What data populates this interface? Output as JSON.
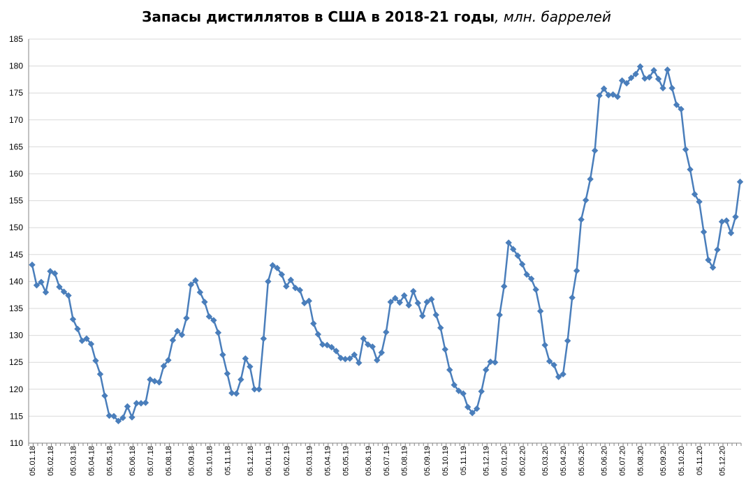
{
  "chart_data": {
    "type": "line",
    "title": "Запасы дистиллятов в США в 2018-21 годы",
    "title_unit": ", млн. баррелей",
    "xlabel": "",
    "ylabel": "",
    "ylim": [
      110,
      185
    ],
    "yticks": [
      110,
      115,
      120,
      125,
      130,
      135,
      140,
      145,
      150,
      155,
      160,
      165,
      170,
      175,
      180,
      185
    ],
    "xtick_labels": [
      "05.01.18",
      "05.02.18",
      "05.03.18",
      "05.04.18",
      "05.05.18",
      "05.06.18",
      "05.07.18",
      "05.08.18",
      "05.09.18",
      "05.10.18",
      "05.11.18",
      "05.12.18",
      "05.01.19",
      "05.02.19",
      "05.03.19",
      "05.04.19",
      "05.05.19",
      "05.06.19",
      "05.07.19",
      "05.08.19",
      "05.09.19",
      "05.10.19",
      "05.11.19",
      "05.12.19",
      "05.01.20",
      "05.02.20",
      "05.03.20",
      "05.04.20",
      "05.05.20",
      "05.06.20",
      "05.07.20",
      "05.08.20",
      "05.09.20",
      "05.10.20",
      "05.11.20",
      "05.12.20"
    ],
    "grid": true,
    "legend": "none",
    "line_color": "#4a7ebb",
    "grid_color": "#d9d9d9",
    "series": [
      {
        "values": [
          143.1,
          139.3,
          139.9,
          138.0,
          141.9,
          141.5,
          139.0,
          138.1,
          137.4,
          133.0,
          131.2,
          129.0,
          129.4,
          128.4,
          125.3,
          122.8,
          118.8,
          115.1,
          115.0,
          114.1,
          114.7,
          116.8,
          114.8,
          117.4,
          117.4,
          117.5,
          121.8,
          121.5,
          121.3,
          124.3,
          125.4,
          129.1,
          130.8,
          130.1,
          133.2,
          139.4,
          140.2,
          138.0,
          136.2,
          133.5,
          132.8,
          130.5,
          126.4,
          122.9,
          119.3,
          119.2,
          121.8,
          125.7,
          124.2,
          120.0,
          120.0,
          129.4,
          140.0,
          143.0,
          142.5,
          141.3,
          139.1,
          140.3,
          138.8,
          138.4,
          136.0,
          136.4,
          132.2,
          130.2,
          128.3,
          128.2,
          127.8,
          127.1,
          125.8,
          125.6,
          125.7,
          126.4,
          124.9,
          129.4,
          128.3,
          127.9,
          125.4,
          126.8,
          130.6,
          136.2,
          136.9,
          136.1,
          137.4,
          135.6,
          138.2,
          136.0,
          133.6,
          136.2,
          136.7,
          133.8,
          131.4,
          127.4,
          123.6,
          120.8,
          119.7,
          119.2,
          116.7,
          115.6,
          116.4,
          119.6,
          123.6,
          125.1,
          125.0,
          133.8,
          139.1,
          147.2,
          146.0,
          144.8,
          143.2,
          141.3,
          140.5,
          138.5,
          134.5,
          128.2,
          125.2,
          124.5,
          122.3,
          122.8,
          129.0,
          137.0,
          142.0,
          151.5,
          155.1,
          159.0,
          164.3,
          174.5,
          175.8,
          174.6,
          174.7,
          174.3,
          177.3,
          176.8,
          177.8,
          178.5,
          179.9,
          177.7,
          177.9,
          179.2,
          177.6,
          175.9,
          179.3,
          175.9,
          172.8,
          172.0,
          164.5,
          160.8,
          156.2,
          154.8,
          149.2,
          144.0,
          142.6,
          145.9,
          151.1,
          151.3,
          149.0,
          152.0,
          158.5
        ]
      }
    ]
  }
}
